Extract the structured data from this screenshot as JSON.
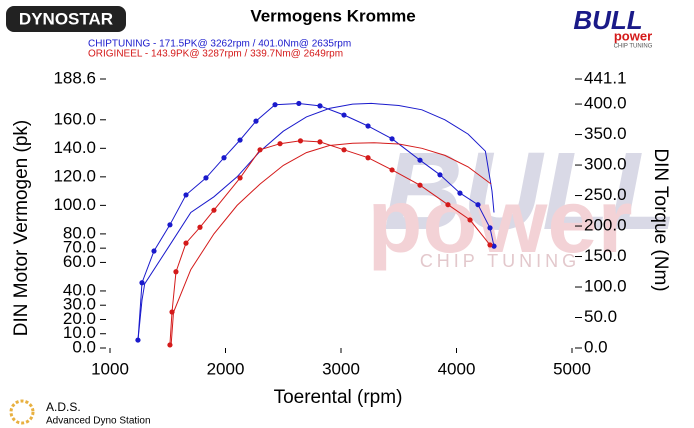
{
  "chart_data": {
    "type": "dyno",
    "title": "Vermogens Kromme",
    "legend": [
      {
        "label": "CHIPTUNING  - 171.5PK@ 3262rpm / 401.0Nm@ 2635rpm",
        "color": "#1a1acc"
      },
      {
        "label": "ORIGINEEL  - 143.9PK@ 3287rpm / 339.7Nm@ 2649rpm",
        "color": "#d41a1a"
      }
    ],
    "x_label": "Toerental (rpm)",
    "y_label": "DIN Motor Vermogen (pk)",
    "y2_label": "DIN Torque (Nm)",
    "xlim": [
      1000,
      5000
    ],
    "xticks": [
      1000,
      2000,
      3000,
      4000,
      5000
    ],
    "ylim": [
      0,
      188.6
    ],
    "yticks": [
      {
        "value": 0,
        "label": "0.0"
      },
      {
        "value": 10,
        "label": "10.0"
      },
      {
        "value": 20,
        "label": "20.0"
      },
      {
        "value": 30,
        "label": "30.0"
      },
      {
        "value": 40,
        "label": "40.0"
      },
      {
        "value": 60,
        "label": "60.0"
      },
      {
        "value": 70,
        "label": "70.0"
      },
      {
        "value": 80,
        "label": "80.0"
      },
      {
        "value": 100,
        "label": "100.0"
      },
      {
        "value": 120,
        "label": "120.0"
      },
      {
        "value": 140,
        "label": "140.0"
      },
      {
        "value": 160,
        "label": "160.0"
      },
      188.6
    ],
    "y2lim": [
      0,
      441.1
    ],
    "y2ticks": [
      {
        "value": 0,
        "label": "0.0"
      },
      {
        "value": 50,
        "label": "50.0"
      },
      {
        "value": 100,
        "label": "100.0"
      },
      {
        "value": 150,
        "label": "150.0"
      },
      {
        "value": 200,
        "label": "200.0"
      },
      {
        "value": 250,
        "label": "250.0"
      },
      {
        "value": 300,
        "label": "300.0"
      },
      {
        "value": 350,
        "label": "350.0"
      },
      {
        "value": 400,
        "label": "400.0"
      },
      441.1
    ],
    "series": [
      {
        "color": "#1a1acc",
        "axis": "y",
        "dots": false,
        "x": [
          1242,
          1277,
          1300,
          1500,
          1700,
          1900,
          2100,
          2300,
          2500,
          2700,
          2900,
          3100,
          3262,
          3500,
          3700,
          3900,
          4100,
          4250,
          4307,
          4325
        ],
        "values": [
          5.6,
          33.6,
          45,
          70,
          95,
          106,
          120,
          138,
          152,
          162,
          168,
          171,
          171.5,
          170,
          167,
          160,
          150,
          138,
          110,
          95
        ]
      },
      {
        "color": "#1a1acc",
        "axis": "y2",
        "dots": true,
        "x": [
          1242,
          1277,
          1381,
          1519,
          1658,
          1831,
          1987,
          2126,
          2264,
          2429,
          2635,
          2818,
          3026,
          3234,
          3442,
          3684,
          3857,
          4030,
          4186,
          4290,
          4325
        ],
        "values": [
          13,
          107,
          159,
          202,
          251,
          279,
          312,
          341,
          372,
          399,
          401,
          397,
          382,
          364,
          343,
          308,
          284,
          254,
          235,
          197,
          167
        ]
      },
      {
        "color": "#d41a1a",
        "axis": "y",
        "dots": false,
        "x": [
          1530,
          1550,
          1700,
          1900,
          2100,
          2300,
          2500,
          2700,
          2900,
          3100,
          3287,
          3500,
          3700,
          3900,
          4100,
          4300
        ],
        "values": [
          3,
          25,
          55,
          80,
          100,
          115,
          128,
          137,
          142,
          143.5,
          143.9,
          143,
          140,
          135,
          127,
          115
        ]
      },
      {
        "color": "#d41a1a",
        "axis": "y2",
        "dots": true,
        "x": [
          1519,
          1537,
          1571,
          1658,
          1779,
          1900,
          2126,
          2299,
          2472,
          2649,
          2818,
          3026,
          3234,
          3442,
          3684,
          3926,
          4117,
          4290
        ],
        "values": [
          5,
          59,
          125,
          172,
          198,
          226,
          279,
          325,
          335,
          339.7,
          338,
          325,
          312,
          292,
          267,
          235,
          210,
          169
        ]
      }
    ],
    "logo_left": "DYNOSTAR",
    "logo_right": "BULL",
    "logo_right_sub": "power",
    "logo_right_tag": "CHIP TUNING",
    "footer_title": "A.D.S.",
    "footer_sub": "Advanced Dyno Station"
  }
}
